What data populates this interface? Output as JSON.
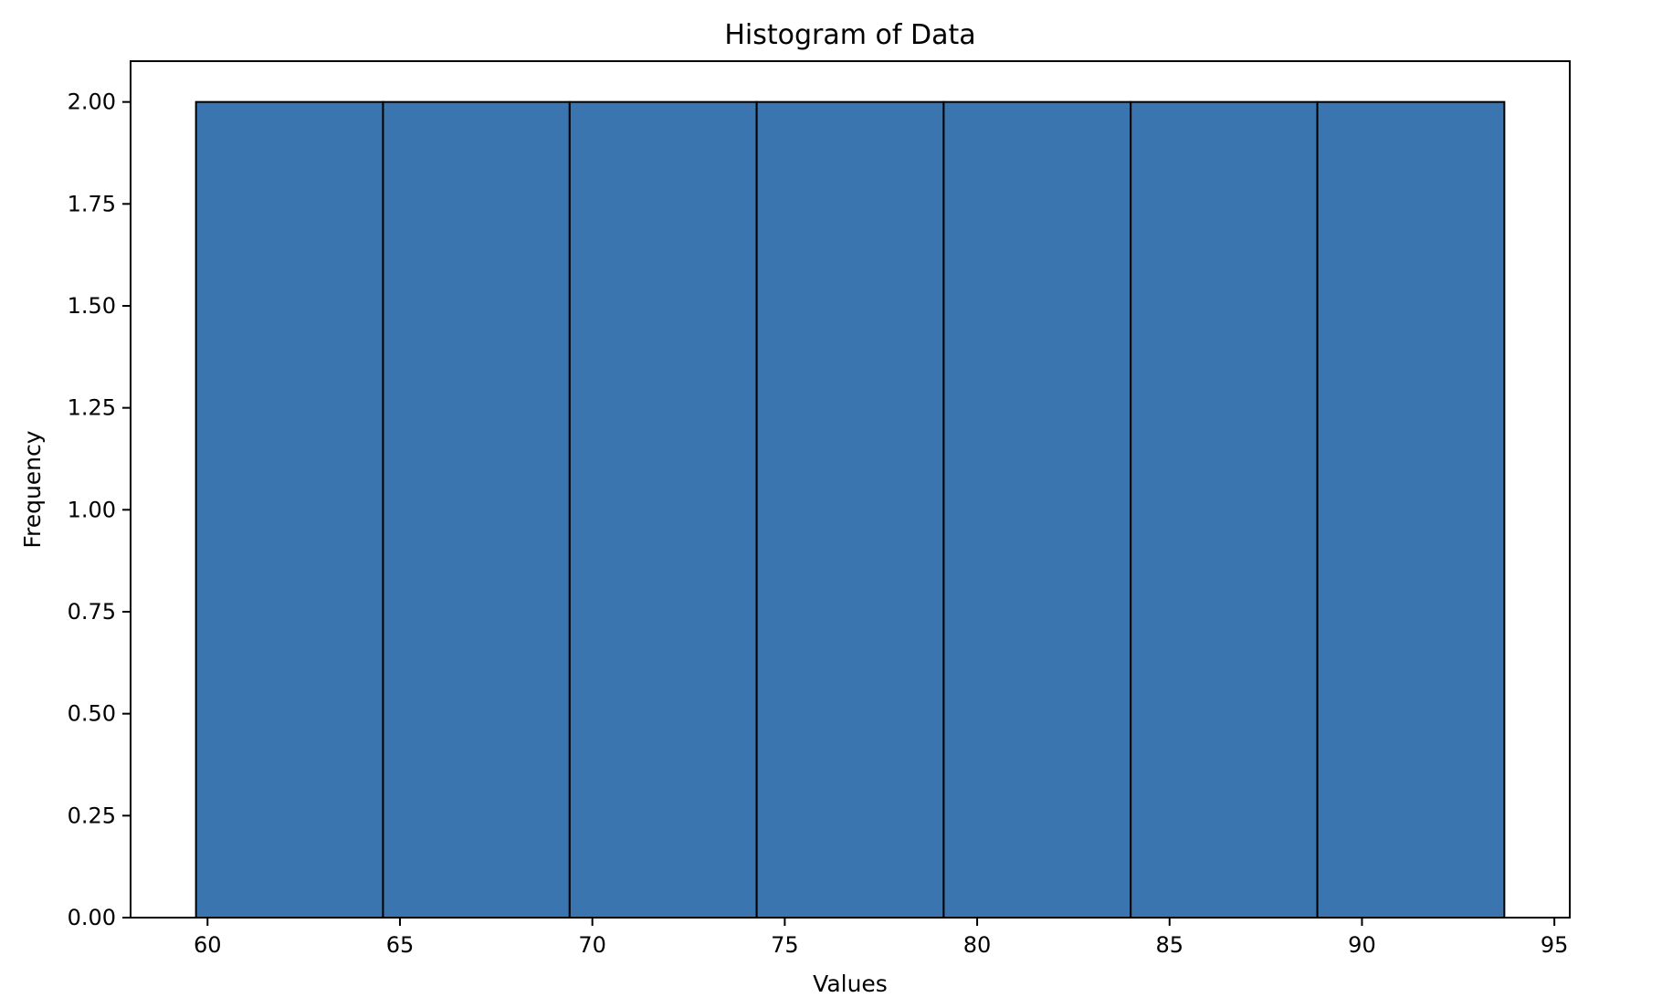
{
  "chart_data": {
    "type": "bar",
    "subtype": "histogram",
    "title": "Histogram of Data",
    "xlabel": "Values",
    "ylabel": "Frequency",
    "bin_edges": [
      59.7,
      64.56,
      69.41,
      74.27,
      79.13,
      83.99,
      88.84,
      93.7
    ],
    "values": [
      2,
      2,
      2,
      2,
      2,
      2,
      2
    ],
    "xlim": [
      58.0,
      95.4
    ],
    "ylim": [
      0,
      2.1
    ],
    "x_ticks": [
      60,
      65,
      70,
      75,
      80,
      85,
      90,
      95
    ],
    "x_tick_labels": [
      "60",
      "65",
      "70",
      "75",
      "80",
      "85",
      "90",
      "95"
    ],
    "y_ticks": [
      0,
      0.25,
      0.5,
      0.75,
      1.0,
      1.25,
      1.5,
      1.75,
      2.0
    ],
    "y_tick_labels": [
      "0.00",
      "0.25",
      "0.50",
      "0.75",
      "1.00",
      "1.25",
      "1.50",
      "1.75",
      "2.00"
    ],
    "bar_color": "#3b75af",
    "edge_color": "#000000",
    "grid": false,
    "legend": "none"
  }
}
